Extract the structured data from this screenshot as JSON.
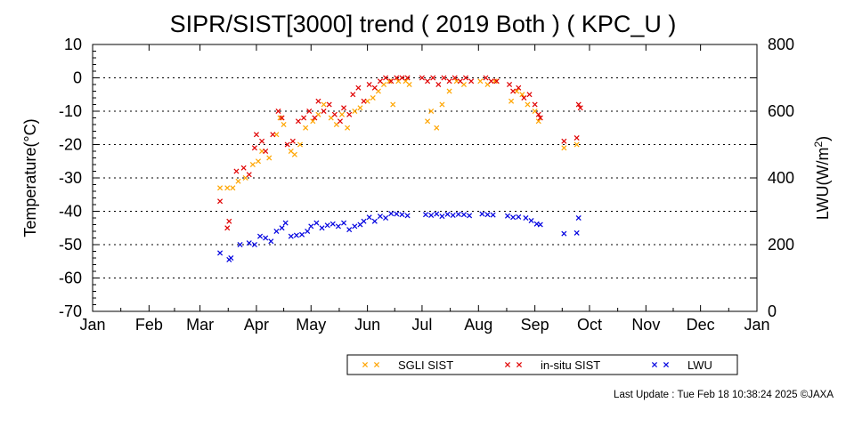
{
  "chart_data": {
    "type": "scatter",
    "title": "SIPR/SIST[3000] trend ( 2019 Both ) ( KPC_U )",
    "ylabel": "Temperature(°C)",
    "y2label_main": "LWU(W/m",
    "y2label_sup": "2",
    "y2label_end": ")",
    "ylim": [
      -70,
      10
    ],
    "y2lim": [
      0,
      800
    ],
    "yticks": [
      "10",
      "0",
      "-10",
      "-20",
      "-30",
      "-40",
      "-50",
      "-60",
      "-70"
    ],
    "y2ticks": [
      "800",
      "600",
      "400",
      "200",
      "0"
    ],
    "months": [
      "Jan",
      "Feb",
      "Mar",
      "Apr",
      "May",
      "Jun",
      "Jul",
      "Aug",
      "Sep",
      "Oct",
      "Nov",
      "Dec",
      "Jan"
    ],
    "grid": "dotted horizontal at every 10 °C",
    "legend_position": "bottom-center",
    "series": [
      {
        "name": "SGLI SIST",
        "axis": "left",
        "color": "#ffa500",
        "marker": "x",
        "points": [
          [
            "2019-03-12",
            -33
          ],
          [
            "2019-03-16",
            -33
          ],
          [
            "2019-03-19",
            -33
          ],
          [
            "2019-03-22",
            -31
          ],
          [
            "2019-03-26",
            -30
          ],
          [
            "2019-03-30",
            -26
          ],
          [
            "2019-04-02",
            -25
          ],
          [
            "2019-04-04",
            -22
          ],
          [
            "2019-04-08",
            -24
          ],
          [
            "2019-04-12",
            -17
          ],
          [
            "2019-04-14",
            -12
          ],
          [
            "2019-04-16",
            -14
          ],
          [
            "2019-04-20",
            -22
          ],
          [
            "2019-04-22",
            -23
          ],
          [
            "2019-04-25",
            -20
          ],
          [
            "2019-04-28",
            -15
          ],
          [
            "2019-05-02",
            -13
          ],
          [
            "2019-05-05",
            -11
          ],
          [
            "2019-05-08",
            -8
          ],
          [
            "2019-05-12",
            -12
          ],
          [
            "2019-05-15",
            -14
          ],
          [
            "2019-05-18",
            -11
          ],
          [
            "2019-05-21",
            -15
          ],
          [
            "2019-05-25",
            -10
          ],
          [
            "2019-05-28",
            -9
          ],
          [
            "2019-06-01",
            -7
          ],
          [
            "2019-06-04",
            -6
          ],
          [
            "2019-06-07",
            -4
          ],
          [
            "2019-06-10",
            -2
          ],
          [
            "2019-06-13",
            -1
          ],
          [
            "2019-06-15",
            -8
          ],
          [
            "2019-06-18",
            -1
          ],
          [
            "2019-06-22",
            -1
          ],
          [
            "2019-06-24",
            -2
          ],
          [
            "2019-07-04",
            -13
          ],
          [
            "2019-07-06",
            -10
          ],
          [
            "2019-07-09",
            -15
          ],
          [
            "2019-07-12",
            -8
          ],
          [
            "2019-07-16",
            -4
          ],
          [
            "2019-07-20",
            -1
          ],
          [
            "2019-07-24",
            -2
          ],
          [
            "2019-08-02",
            -1
          ],
          [
            "2019-08-06",
            -2
          ],
          [
            "2019-08-10",
            -1
          ],
          [
            "2019-08-19",
            -7
          ],
          [
            "2019-08-22",
            -4
          ],
          [
            "2019-08-25",
            -5
          ],
          [
            "2019-08-28",
            -8
          ],
          [
            "2019-09-01",
            -10
          ],
          [
            "2019-09-03",
            -13
          ],
          [
            "2019-09-17",
            -21
          ],
          [
            "2019-09-24",
            -20
          ]
        ]
      },
      {
        "name": "in-situ SIST",
        "axis": "left",
        "color": "#e00000",
        "marker": "x",
        "points": [
          [
            "2019-03-12",
            -37
          ],
          [
            "2019-03-16",
            -45
          ],
          [
            "2019-03-17",
            -43
          ],
          [
            "2019-03-21",
            -28
          ],
          [
            "2019-03-25",
            -27
          ],
          [
            "2019-03-28",
            -29
          ],
          [
            "2019-03-31",
            -21
          ],
          [
            "2019-04-01",
            -17
          ],
          [
            "2019-04-04",
            -19
          ],
          [
            "2019-04-06",
            -22
          ],
          [
            "2019-04-10",
            -17
          ],
          [
            "2019-04-13",
            -10
          ],
          [
            "2019-04-15",
            -12
          ],
          [
            "2019-04-18",
            -20
          ],
          [
            "2019-04-21",
            -19
          ],
          [
            "2019-04-24",
            -13
          ],
          [
            "2019-04-27",
            -12
          ],
          [
            "2019-04-30",
            -10
          ],
          [
            "2019-05-03",
            -12
          ],
          [
            "2019-05-05",
            -7
          ],
          [
            "2019-05-08",
            -10
          ],
          [
            "2019-05-11",
            -8
          ],
          [
            "2019-05-14",
            -11
          ],
          [
            "2019-05-17",
            -13
          ],
          [
            "2019-05-19",
            -9
          ],
          [
            "2019-05-22",
            -11
          ],
          [
            "2019-05-24",
            -5
          ],
          [
            "2019-05-27",
            -3
          ],
          [
            "2019-05-30",
            -7
          ],
          [
            "2019-06-02",
            -2
          ],
          [
            "2019-06-05",
            -3
          ],
          [
            "2019-06-08",
            -1
          ],
          [
            "2019-06-11",
            0
          ],
          [
            "2019-06-14",
            -1
          ],
          [
            "2019-06-17",
            0
          ],
          [
            "2019-06-20",
            0
          ],
          [
            "2019-06-23",
            0
          ],
          [
            "2019-07-01",
            0
          ],
          [
            "2019-07-04",
            -1
          ],
          [
            "2019-07-07",
            0
          ],
          [
            "2019-07-10",
            -2
          ],
          [
            "2019-07-13",
            0
          ],
          [
            "2019-07-16",
            -1
          ],
          [
            "2019-07-19",
            0
          ],
          [
            "2019-07-22",
            -1
          ],
          [
            "2019-07-25",
            0
          ],
          [
            "2019-07-28",
            -1
          ],
          [
            "2019-08-05",
            0
          ],
          [
            "2019-08-08",
            -1
          ],
          [
            "2019-08-11",
            -1
          ],
          [
            "2019-08-18",
            -2
          ],
          [
            "2019-08-20",
            -4
          ],
          [
            "2019-08-23",
            -3
          ],
          [
            "2019-08-26",
            -6
          ],
          [
            "2019-08-29",
            -5
          ],
          [
            "2019-09-01",
            -8
          ],
          [
            "2019-09-03",
            -11
          ],
          [
            "2019-09-04",
            -12
          ],
          [
            "2019-09-17",
            -19
          ],
          [
            "2019-09-24",
            -18
          ],
          [
            "2019-09-25",
            -8
          ],
          [
            "2019-09-26",
            -9
          ]
        ]
      },
      {
        "name": "LWU",
        "axis": "right",
        "color": "#0000e0",
        "marker": "x",
        "points": [
          [
            "2019-03-12",
            175
          ],
          [
            "2019-03-17",
            155
          ],
          [
            "2019-03-18",
            160
          ],
          [
            "2019-03-23",
            200
          ],
          [
            "2019-03-28",
            205
          ],
          [
            "2019-03-31",
            200
          ],
          [
            "2019-04-03",
            225
          ],
          [
            "2019-04-06",
            220
          ],
          [
            "2019-04-09",
            210
          ],
          [
            "2019-04-12",
            240
          ],
          [
            "2019-04-15",
            250
          ],
          [
            "2019-04-17",
            265
          ],
          [
            "2019-04-20",
            225
          ],
          [
            "2019-04-23",
            228
          ],
          [
            "2019-04-26",
            230
          ],
          [
            "2019-04-29",
            240
          ],
          [
            "2019-05-01",
            255
          ],
          [
            "2019-05-04",
            265
          ],
          [
            "2019-05-07",
            250
          ],
          [
            "2019-05-10",
            258
          ],
          [
            "2019-05-13",
            262
          ],
          [
            "2019-05-16",
            255
          ],
          [
            "2019-05-19",
            265
          ],
          [
            "2019-05-22",
            245
          ],
          [
            "2019-05-25",
            255
          ],
          [
            "2019-05-28",
            260
          ],
          [
            "2019-05-30",
            270
          ],
          [
            "2019-06-02",
            282
          ],
          [
            "2019-06-05",
            270
          ],
          [
            "2019-06-08",
            285
          ],
          [
            "2019-06-11",
            280
          ],
          [
            "2019-06-14",
            293
          ],
          [
            "2019-06-17",
            292
          ],
          [
            "2019-06-20",
            290
          ],
          [
            "2019-06-23",
            287
          ],
          [
            "2019-07-03",
            290
          ],
          [
            "2019-07-06",
            288
          ],
          [
            "2019-07-09",
            292
          ],
          [
            "2019-07-12",
            285
          ],
          [
            "2019-07-15",
            291
          ],
          [
            "2019-07-18",
            288
          ],
          [
            "2019-07-21",
            291
          ],
          [
            "2019-07-24",
            290
          ],
          [
            "2019-07-27",
            287
          ],
          [
            "2019-08-03",
            292
          ],
          [
            "2019-08-06",
            290
          ],
          [
            "2019-08-09",
            289
          ],
          [
            "2019-08-17",
            286
          ],
          [
            "2019-08-20",
            282
          ],
          [
            "2019-08-23",
            283
          ],
          [
            "2019-08-27",
            280
          ],
          [
            "2019-08-30",
            272
          ],
          [
            "2019-09-02",
            262
          ],
          [
            "2019-09-04",
            260
          ],
          [
            "2019-09-17",
            233
          ],
          [
            "2019-09-24",
            235
          ],
          [
            "2019-09-25",
            280
          ]
        ]
      }
    ]
  },
  "footer": {
    "last_update": "Last Update : Tue Feb 18 10:38:24 2025  ©JAXA"
  }
}
